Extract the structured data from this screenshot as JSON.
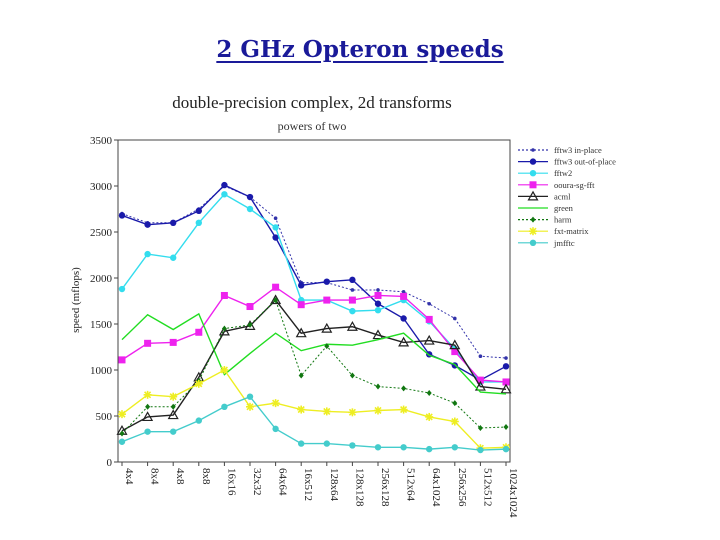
{
  "slide": {
    "title": "2 GHz Opteron speeds"
  },
  "chart_data": {
    "type": "line",
    "title": "double-precision complex, 2d transforms",
    "subtitle": "powers of two",
    "xlabel": "",
    "ylabel": "speed (mflops)",
    "ylim": [
      0,
      3500
    ],
    "yticks": [
      0,
      500,
      1000,
      1500,
      2000,
      2500,
      3000,
      3500
    ],
    "grid": false,
    "legend_position": "top-right",
    "categories": [
      "4x4",
      "8x4",
      "4x8",
      "8x8",
      "16x16",
      "32x32",
      "64x64",
      "16x512",
      "128x64",
      "128x128",
      "256x128",
      "512x64",
      "64x1024",
      "256x256",
      "512x512",
      "1024x1024"
    ],
    "series": [
      {
        "name": "fftw3 in-place",
        "color": "#3333aa",
        "style": "dotted",
        "marker": "dot",
        "values": [
          2700,
          2600,
          2600,
          2750,
          3000,
          2880,
          2650,
          1950,
          1950,
          1870,
          1870,
          1850,
          1720,
          1560,
          1150,
          1130
        ]
      },
      {
        "name": "fftw3 out-of-place",
        "color": "#1a1aaa",
        "style": "solid",
        "marker": "circle",
        "values": [
          2680,
          2580,
          2600,
          2730,
          3010,
          2880,
          2440,
          1920,
          1960,
          1980,
          1720,
          1560,
          1170,
          1050,
          890,
          1040
        ]
      },
      {
        "name": "fftw2",
        "color": "#33ddee",
        "style": "solid",
        "marker": "circle",
        "values": [
          1880,
          2260,
          2220,
          2600,
          2910,
          2750,
          2550,
          1760,
          1760,
          1640,
          1650,
          1760,
          1530,
          1230,
          870,
          870
        ]
      },
      {
        "name": "ooura-sg-fft",
        "color": "#ee22ee",
        "style": "solid",
        "marker": "square",
        "values": [
          1110,
          1290,
          1300,
          1410,
          1810,
          1690,
          1900,
          1710,
          1760,
          1760,
          1810,
          1800,
          1550,
          1200,
          890,
          870
        ]
      },
      {
        "name": "acml",
        "color": "#222222",
        "style": "solid",
        "marker": "triangle",
        "values": [
          340,
          490,
          510,
          920,
          1420,
          1480,
          1760,
          1400,
          1450,
          1470,
          1380,
          1300,
          1320,
          1270,
          820,
          790
        ]
      },
      {
        "name": "green",
        "color": "#22dd22",
        "style": "solid",
        "marker": "none",
        "values": [
          1330,
          1600,
          1440,
          1610,
          950,
          1180,
          1400,
          1210,
          1280,
          1270,
          1330,
          1400,
          1160,
          1060,
          760,
          740
        ]
      },
      {
        "name": "harm",
        "color": "#117711",
        "style": "dotted",
        "marker": "diamond",
        "values": [
          310,
          600,
          600,
          880,
          1450,
          1490,
          1760,
          940,
          1260,
          940,
          820,
          800,
          750,
          640,
          370,
          380
        ]
      },
      {
        "name": "fxt-matrix",
        "color": "#eeee22",
        "style": "solid",
        "marker": "star",
        "values": [
          520,
          730,
          710,
          850,
          1000,
          600,
          640,
          570,
          550,
          540,
          560,
          570,
          490,
          440,
          150,
          160
        ]
      },
      {
        "name": "jmfftc",
        "color": "#44cccc",
        "style": "solid",
        "marker": "circle",
        "values": [
          220,
          330,
          330,
          450,
          600,
          710,
          360,
          200,
          200,
          180,
          160,
          160,
          140,
          160,
          130,
          140
        ]
      }
    ]
  }
}
